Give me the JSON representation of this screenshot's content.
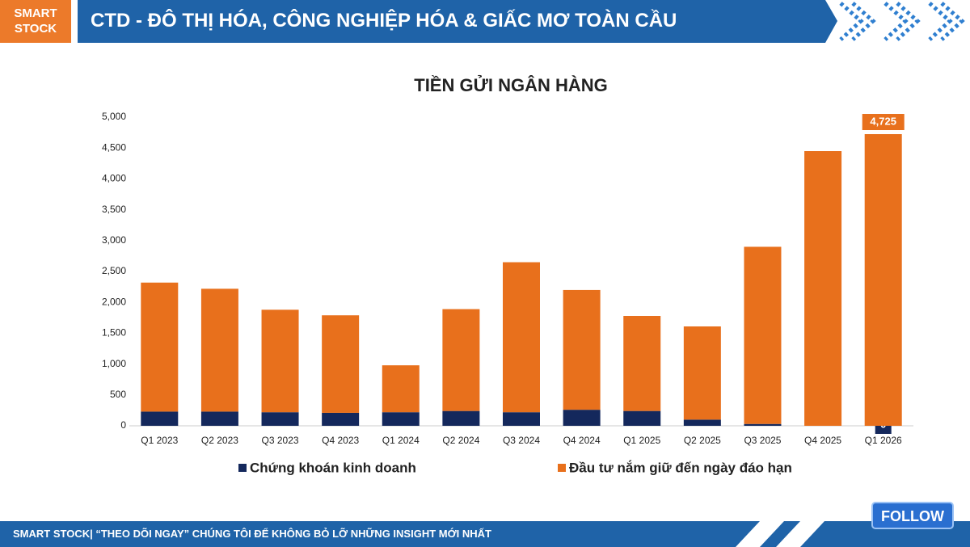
{
  "header": {
    "brand": "SMART STOCK",
    "title": "CTD - ĐÔ THỊ HÓA, CÔNG NGHIỆP HÓA & GIẤC MƠ TOÀN CẦU"
  },
  "footer": {
    "text": "SMART STOCK| “THEO DÕI NGAY” CHÚNG TÔI ĐỂ KHÔNG BỎ LỠ NHỮNG INSIGHT MỚI NHẤT",
    "button": "FOLLOW"
  },
  "chart_data": {
    "type": "stacked_bar",
    "title": "TIỀN GỬI NGÂN HÀNG",
    "categories": [
      "Q1 2023",
      "Q2 2023",
      "Q3 2023",
      "Q4 2023",
      "Q1 2024",
      "Q2 2024",
      "Q3 2024",
      "Q4 2024",
      "Q1 2025",
      "Q2 2025",
      "Q3 2025",
      "Q4 2025",
      "Q1 2026"
    ],
    "series": [
      {
        "name": "Chứng khoán kinh doanh",
        "color": "#14285c",
        "values": [
          230,
          230,
          220,
          210,
          220,
          240,
          220,
          260,
          240,
          100,
          30,
          0,
          0
        ],
        "value_labels": [
          null,
          null,
          null,
          null,
          null,
          null,
          null,
          null,
          null,
          null,
          null,
          null,
          "0"
        ]
      },
      {
        "name": "Đầu tư nắm giữ đến ngày đáo hạn",
        "color": "#e8701c",
        "values": [
          2090,
          1990,
          1660,
          1580,
          760,
          1650,
          2430,
          1940,
          1540,
          1510,
          2870,
          4450,
          4725
        ],
        "value_labels": [
          null,
          null,
          null,
          null,
          null,
          null,
          null,
          null,
          null,
          null,
          null,
          null,
          "4,725"
        ]
      }
    ],
    "ylim": [
      0,
      5000
    ],
    "yticks": [
      0,
      {
        "value": 500,
        "label": "500"
      },
      {
        "value": 1000,
        "label": "1,000"
      },
      {
        "value": 1500,
        "label": "1,500"
      },
      {
        "value": 2000,
        "label": "2,000"
      },
      {
        "value": 2500,
        "label": "2,500"
      },
      {
        "value": 3000,
        "label": "3,000"
      },
      {
        "value": 3500,
        "label": "3,500"
      },
      {
        "value": 4000,
        "label": "4,000"
      },
      {
        "value": 4500,
        "label": "4,500"
      },
      {
        "value": 5000,
        "label": "5,000"
      }
    ],
    "grid": false,
    "legend": "bottom"
  }
}
